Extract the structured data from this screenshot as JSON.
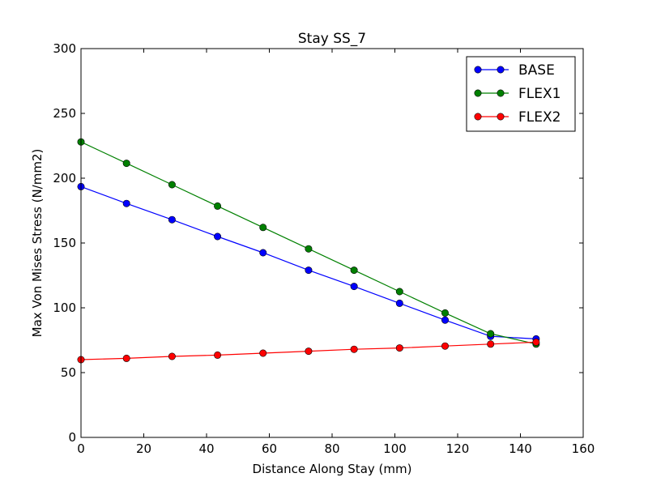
{
  "chart_data": {
    "type": "line",
    "title": "Stay SS_7",
    "xlabel": "Distance Along Stay (mm)",
    "ylabel": "Max Von Mises Stress (N/mm2)",
    "xlim": [
      0,
      160
    ],
    "ylim": [
      0,
      300
    ],
    "xticks": [
      0,
      20,
      40,
      60,
      80,
      100,
      120,
      140,
      160
    ],
    "yticks": [
      0,
      50,
      100,
      150,
      200,
      250,
      300
    ],
    "grid": false,
    "legend_position": "top-right",
    "x": [
      0,
      14.5,
      29,
      43.5,
      58,
      72.5,
      87,
      101.5,
      116,
      130.5,
      145
    ],
    "series": [
      {
        "name": "BASE",
        "color": "#0000ff",
        "values": [
          193.5,
          180.5,
          168,
          155,
          142.5,
          129,
          116.5,
          103.5,
          90.5,
          78,
          76
        ]
      },
      {
        "name": "FLEX1",
        "color": "#008000",
        "values": [
          228,
          211.5,
          195,
          178.5,
          162,
          145.5,
          129,
          112.5,
          96,
          80,
          72
        ]
      },
      {
        "name": "FLEX2",
        "color": "#ff0000",
        "values": [
          60,
          61,
          62.5,
          63.5,
          65,
          66.5,
          68,
          69,
          70.5,
          72,
          73.5
        ]
      }
    ]
  }
}
